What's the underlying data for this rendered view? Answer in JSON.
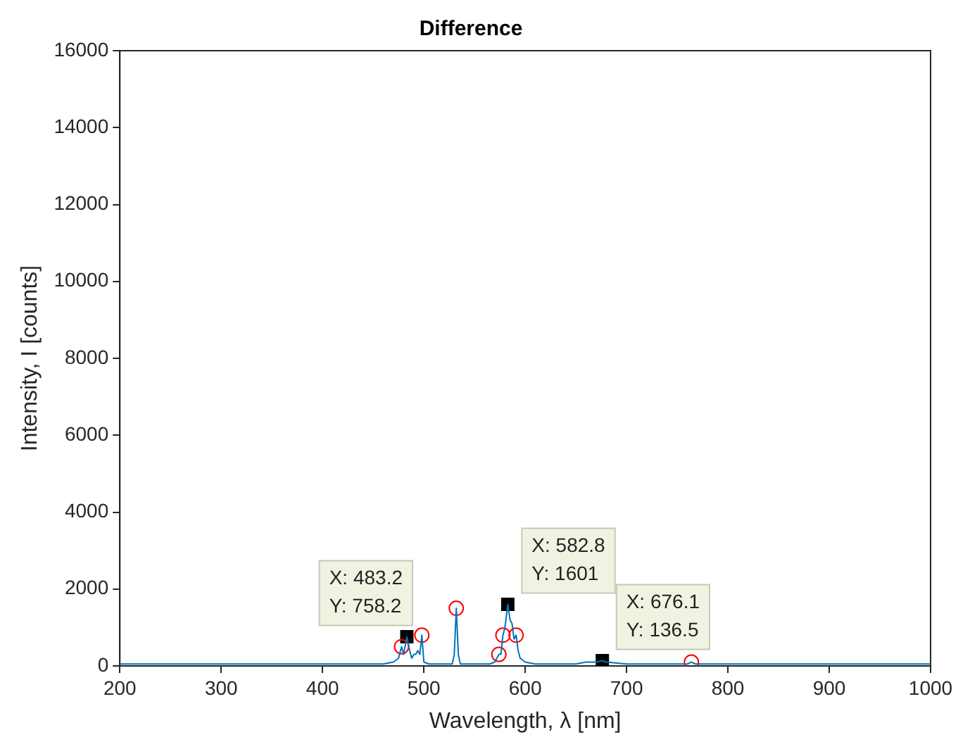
{
  "chart_data": {
    "type": "line",
    "title": "Difference",
    "xlabel": "Wavelength, λ [nm]",
    "ylabel": "Intensity, I [counts]",
    "xlim": [
      200,
      1000
    ],
    "xticks": [
      200,
      300,
      400,
      500,
      600,
      700,
      800,
      900,
      1000
    ],
    "ylim": [
      0,
      16000
    ],
    "yticks": [
      0,
      2000,
      4000,
      6000,
      8000,
      10000,
      12000,
      14000,
      16000
    ],
    "grid": false,
    "legend": false,
    "series": [
      {
        "color": "#0072bd",
        "marker": "none",
        "x": [
          200,
          300,
          400,
          460,
          470,
          475,
          478,
          480,
          483.2,
          486,
          488,
          490,
          492,
          494,
          496,
          498,
          500,
          505,
          520,
          528,
          530,
          532,
          534,
          536,
          550,
          565,
          570,
          574,
          576,
          578,
          580,
          582.8,
          585,
          587,
          589,
          591,
          593,
          595,
          600,
          610,
          650,
          660,
          670,
          676.1,
          680,
          700,
          760,
          764,
          768,
          780,
          1000
        ],
        "values": [
          50,
          50,
          50,
          50,
          100,
          200,
          500,
          300,
          758.2,
          400,
          200,
          300,
          300,
          400,
          300,
          800,
          100,
          50,
          50,
          50,
          300,
          1500,
          300,
          50,
          50,
          50,
          100,
          300,
          300,
          800,
          1000,
          1601,
          1200,
          1100,
          700,
          800,
          400,
          200,
          100,
          50,
          50,
          100,
          100,
          136.5,
          100,
          50,
          50,
          100,
          50,
          50,
          50
        ]
      },
      {
        "type": "scatter",
        "color": "#ff0000",
        "marker": "circle",
        "x": [
          478,
          498,
          532,
          574,
          578,
          591,
          764
        ],
        "values": [
          500,
          800,
          1500,
          300,
          800,
          800,
          100
        ]
      },
      {
        "type": "scatter",
        "color": "#000000",
        "marker": "square",
        "x": [
          483.2,
          582.8,
          676.1
        ],
        "values": [
          758.2,
          1601,
          136.5
        ]
      }
    ],
    "annotations": [
      {
        "text": "X: 483.2\nY: 758.2",
        "x": 483.2,
        "y": 758.2
      },
      {
        "text": "X: 582.8\nY: 1601",
        "x": 582.8,
        "y": 1601
      },
      {
        "text": "X: 676.1\nY: 136.5",
        "x": 676.1,
        "y": 136.5
      }
    ]
  }
}
